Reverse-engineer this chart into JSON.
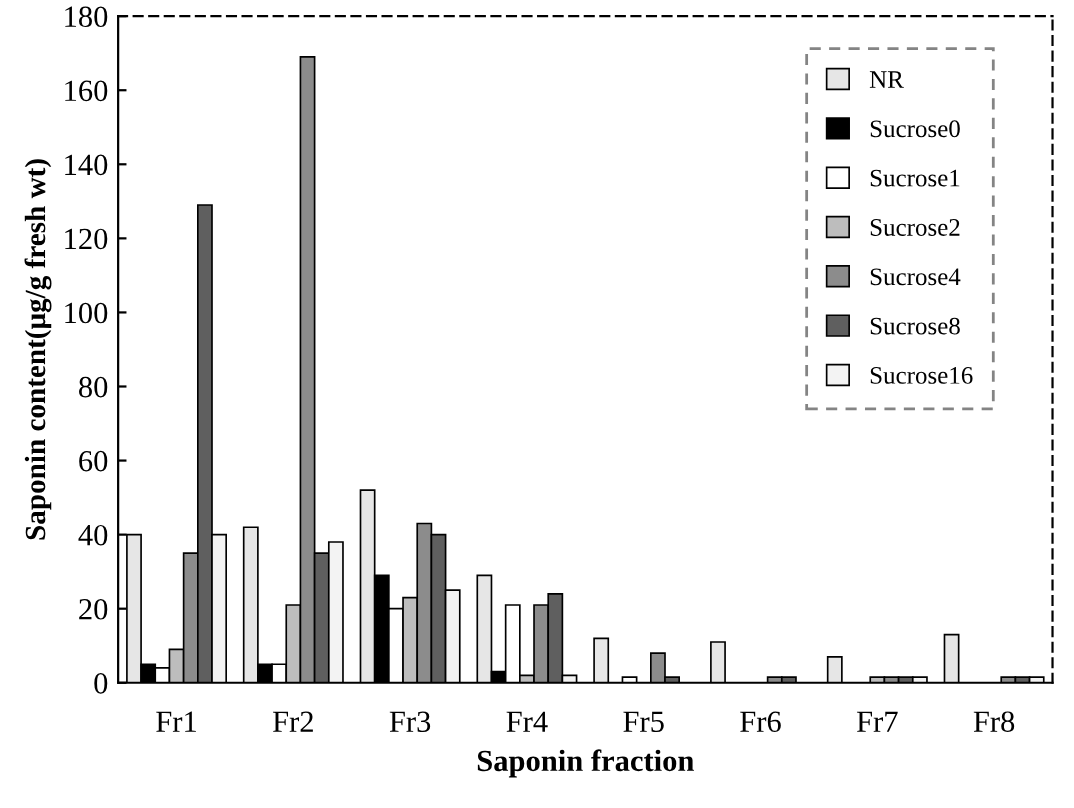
{
  "chart_data": {
    "type": "bar",
    "xlabel": "Saponin fraction",
    "ylabel": "Saponin content(μg/g fresh wt)",
    "categories": [
      "Fr1",
      "Fr2",
      "Fr3",
      "Fr4",
      "Fr5",
      "Fr6",
      "Fr7",
      "Fr8"
    ],
    "series": [
      {
        "name": "NR",
        "color": "#e6e6e6",
        "values": [
          40,
          42,
          52,
          29,
          12,
          11,
          7,
          13
        ]
      },
      {
        "name": "Sucrose0",
        "color": "#000000",
        "values": [
          5,
          5,
          29,
          3,
          null,
          null,
          null,
          null
        ]
      },
      {
        "name": "Sucrose1",
        "color": "#ffffff",
        "values": [
          4,
          5,
          20,
          21,
          1.5,
          null,
          null,
          null
        ]
      },
      {
        "name": "Sucrose2",
        "color": "#bdbdbd",
        "values": [
          9,
          21,
          23,
          2,
          null,
          null,
          1.5,
          null
        ]
      },
      {
        "name": "Sucrose4",
        "color": "#8c8c8c",
        "values": [
          35,
          169,
          43,
          21,
          8,
          1.5,
          1.5,
          1.5
        ]
      },
      {
        "name": "Sucrose8",
        "color": "#5f5f5f",
        "values": [
          129,
          35,
          40,
          24,
          1.5,
          1.5,
          1.5,
          1.5
        ]
      },
      {
        "name": "Sucrose16",
        "color": "#f3f3f3",
        "values": [
          40,
          38,
          25,
          2,
          null,
          null,
          1.5,
          1.5
        ]
      }
    ],
    "ylim": [
      0,
      180
    ],
    "yticks": [
      0,
      20,
      40,
      60,
      80,
      100,
      120,
      140,
      160,
      180
    ],
    "grid": false,
    "legend": "top right"
  }
}
